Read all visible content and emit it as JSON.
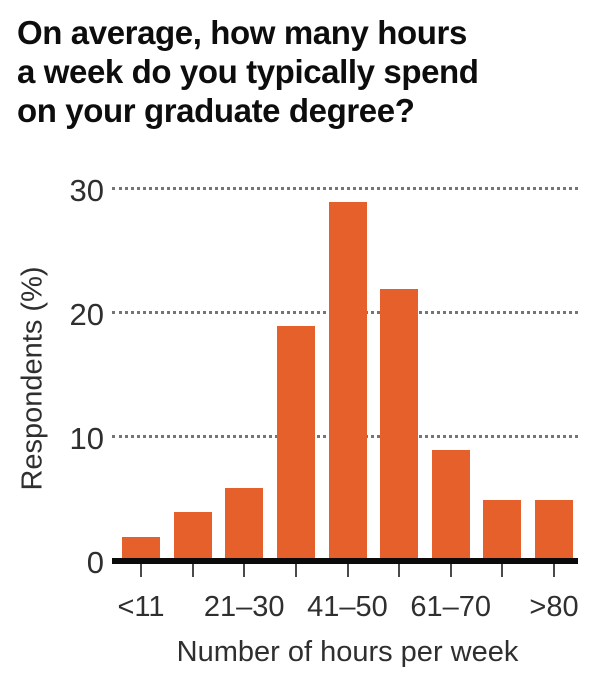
{
  "chart_data": {
    "type": "bar",
    "title": "On average, how many hours\na week do you typically spend\non your graduate degree?",
    "title_lines": [
      "On average, how many hours",
      "a week do you typically spend",
      "on your graduate degree?"
    ],
    "xlabel": "Number of hours per week",
    "ylabel": "Respondents (%)",
    "x_tick_labels": [
      "<11",
      "",
      "21–30",
      "",
      "41–50",
      "",
      "61–70",
      "",
      ">80"
    ],
    "values": [
      2,
      4,
      6,
      19,
      29,
      22,
      9,
      5,
      5
    ],
    "yticks": [
      0,
      10,
      20,
      30
    ],
    "ylim": [
      0,
      31
    ],
    "grid": "horizontal dotted lines at 10, 20, 30; none at 0",
    "legend": "none",
    "bar_color": "#E6602B",
    "axis_line_color": "#0b0b0b",
    "text_color": "#2f2f2f",
    "title_color": "#0d0d0d",
    "gridline_color": "#757575"
  }
}
